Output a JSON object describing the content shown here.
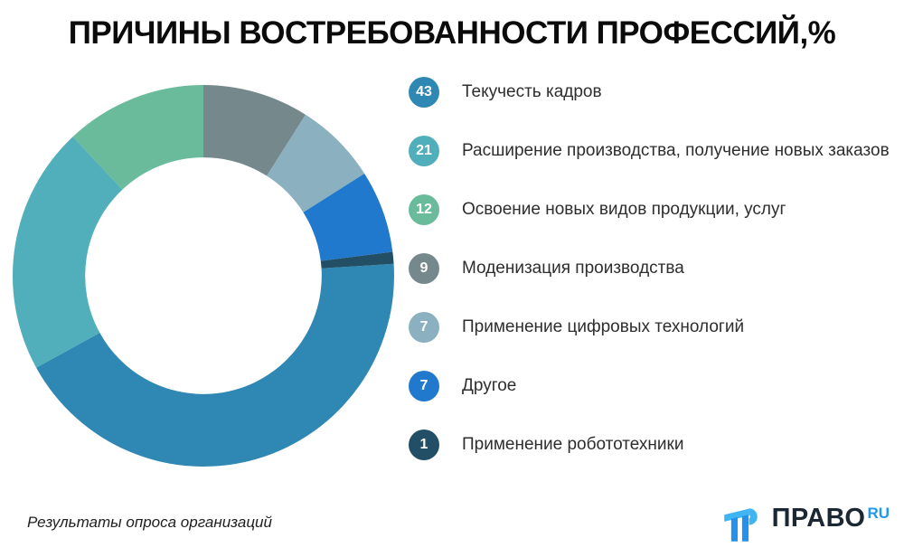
{
  "chart_data": {
    "type": "pie",
    "variant": "donut",
    "title": "ПРИЧИНЫ ВОСТРЕБОВАННОСТИ ПРОФЕССИЙ,%",
    "unit": "%",
    "categories": [
      "Текучесть кадров",
      "Расширение производства, получение новых заказов",
      "Освоение новых видов продукции, услуг",
      "Моденизация производства",
      "Применение цифровых технологий",
      "Другое",
      "Применение робототехники"
    ],
    "values": [
      43,
      21,
      12,
      9,
      7,
      7,
      1
    ],
    "colors": [
      "#2f88b4",
      "#51aebb",
      "#6abb9c",
      "#75898c",
      "#8bb0c0",
      "#2079cc",
      "#224f66"
    ],
    "start_angle_deg": 86.4,
    "direction": "clockwise",
    "inner_radius_ratio": 0.62,
    "legend_position": "right",
    "background": "#ffffff"
  },
  "footer": {
    "source_note": "Результаты опроса организаций",
    "logo": {
      "text": "ПРАВО",
      "suffix": "RU",
      "brand_blue": "#2196f3",
      "brand_dark": "#1b2733"
    }
  }
}
